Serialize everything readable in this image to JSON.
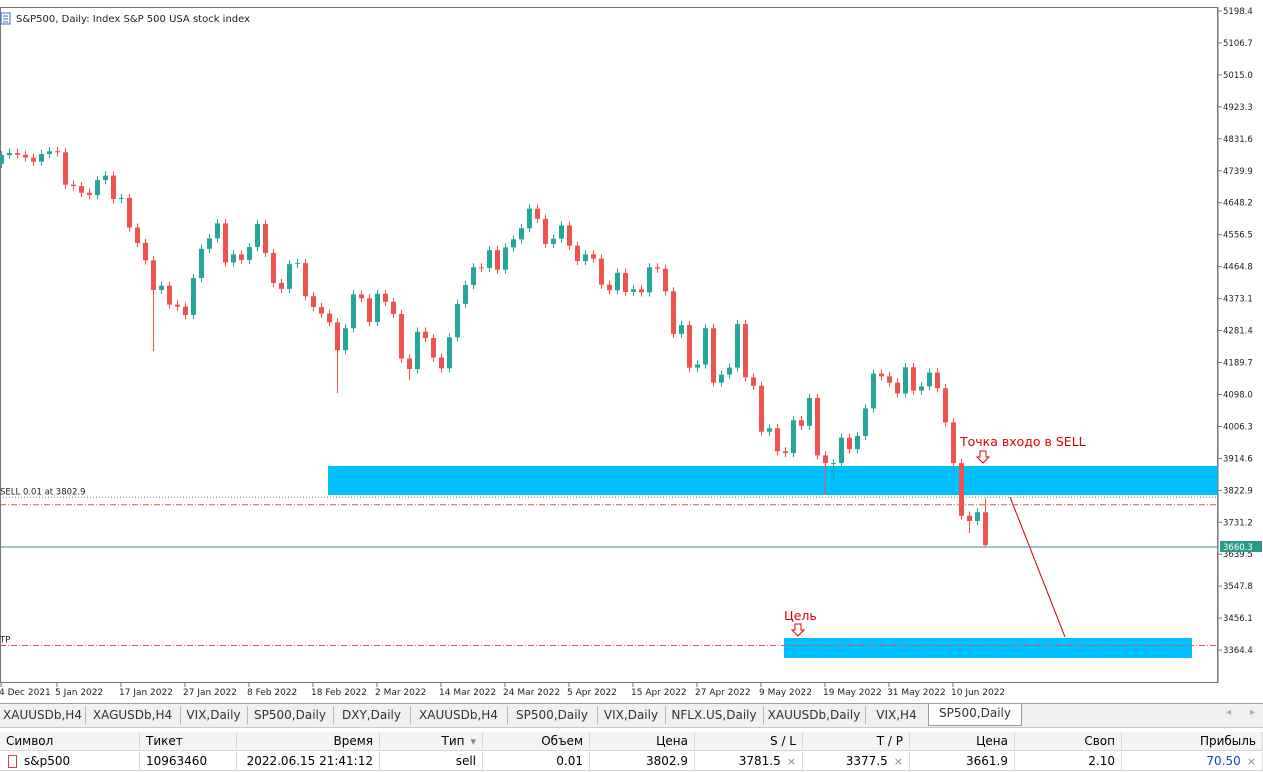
{
  "chart_data": {
    "type": "candlestick",
    "title": "S&P500, Daily:  Index S&P 500 USA stock index",
    "categories": [
      "4 Dec 2021",
      null,
      null,
      null,
      null,
      null,
      null,
      "5 Jan 2022",
      null,
      null,
      null,
      null,
      null,
      null,
      null,
      "17 Jan 2022",
      null,
      null,
      null,
      null,
      null,
      null,
      null,
      "27 Jan 2022",
      null,
      null,
      null,
      null,
      null,
      null,
      null,
      "8 Feb 2022",
      null,
      null,
      null,
      null,
      null,
      null,
      null,
      "18 Feb 2022",
      null,
      null,
      null,
      null,
      null,
      null,
      null,
      "2 Mar 2022",
      null,
      null,
      null,
      null,
      null,
      null,
      null,
      "14 Mar 2022",
      null,
      null,
      null,
      null,
      null,
      null,
      null,
      "24 Mar 2022",
      null,
      null,
      null,
      null,
      null,
      null,
      null,
      "5 Apr 2022",
      null,
      null,
      null,
      null,
      null,
      null,
      null,
      "15 Apr 2022",
      null,
      null,
      null,
      null,
      null,
      null,
      null,
      "27 Apr 2022",
      null,
      null,
      null,
      null,
      null,
      null,
      null,
      "9 May 2022",
      null,
      null,
      null,
      null,
      null,
      null,
      null,
      "19 May 2022",
      null,
      null,
      null,
      null,
      null,
      null,
      null,
      "31 May 2022",
      null,
      null,
      null,
      null,
      null,
      null,
      null,
      "10 Jun 2022",
      null,
      null,
      null,
      null
    ],
    "open": [
      4760,
      4785,
      4791,
      4786,
      4778,
      4766,
      4788,
      4796,
      4793,
      4700,
      4696,
      4677,
      4670,
      4713,
      4726,
      4659,
      4662,
      4577,
      4533,
      4483,
      4398,
      4410,
      4356,
      4350,
      4326,
      4432,
      4516,
      4546,
      4589,
      4477,
      4500,
      4484,
      4521,
      4587,
      4504,
      4418,
      4401,
      4472,
      4475,
      4380,
      4349,
      4330,
      4305,
      4225,
      4288,
      4385,
      4374,
      4306,
      4387,
      4364,
      4329,
      4201,
      4171,
      4278,
      4260,
      4204,
      4173,
      4262,
      4358,
      4412,
      4463,
      4461,
      4512,
      4456,
      4520,
      4543,
      4575,
      4631,
      4602,
      4530,
      4545,
      4583,
      4525,
      4481,
      4500,
      4488,
      4413,
      4397,
      4447,
      4392,
      4400,
      4391,
      4463,
      4459,
      4394,
      4272,
      4297,
      4175,
      4184,
      4288,
      4132,
      4155,
      4175,
      4300,
      4147,
      4123,
      3991,
      4001,
      3935,
      3930,
      4024,
      4008,
      4088,
      3923,
      3901,
      3901,
      3974,
      3941,
      3979,
      4058,
      4158,
      4150,
      4132,
      4101,
      4176,
      4109,
      4121,
      4161,
      4116,
      4018,
      3901,
      3750,
      3735,
      3760
    ],
    "high": [
      4797,
      4803,
      4803,
      4798,
      4790,
      4800,
      4808,
      4808,
      4805,
      4712,
      4708,
      4689,
      4725,
      4738,
      4738,
      4674,
      4674,
      4589,
      4545,
      4495,
      4422,
      4422,
      4368,
      4362,
      4444,
      4528,
      4558,
      4601,
      4601,
      4512,
      4512,
      4533,
      4599,
      4599,
      4516,
      4430,
      4484,
      4487,
      4487,
      4392,
      4361,
      4342,
      4317,
      4300,
      4397,
      4397,
      4386,
      4399,
      4399,
      4376,
      4341,
      4213,
      4290,
      4290,
      4272,
      4216,
      4274,
      4370,
      4424,
      4475,
      4475,
      4524,
      4524,
      4532,
      4555,
      4587,
      4643,
      4643,
      4614,
      4557,
      4595,
      4595,
      4537,
      4512,
      4512,
      4500,
      4425,
      4459,
      4459,
      4412,
      4412,
      4475,
      4475,
      4471,
      4406,
      4309,
      4309,
      4196,
      4300,
      4300,
      4167,
      4187,
      4312,
      4312,
      4159,
      4135,
      4013,
      4013,
      3947,
      4036,
      4036,
      4100,
      4100,
      3935,
      3913,
      3986,
      3986,
      3991,
      4070,
      4170,
      4170,
      4162,
      4144,
      4188,
      4188,
      4133,
      4173,
      4173,
      4128,
      4030,
      3913,
      3762,
      3772,
      3800
    ],
    "low": [
      4748,
      4773,
      4774,
      4766,
      4754,
      4754,
      4776,
      4781,
      4688,
      4684,
      4665,
      4658,
      4658,
      4701,
      4647,
      4647,
      4565,
      4521,
      4471,
      4222,
      4386,
      4344,
      4338,
      4314,
      4314,
      4420,
      4504,
      4534,
      4465,
      4465,
      4472,
      4472,
      4509,
      4492,
      4406,
      4389,
      4389,
      4460,
      4368,
      4337,
      4318,
      4293,
      4102,
      4213,
      4276,
      4362,
      4294,
      4294,
      4352,
      4317,
      4189,
      4140,
      4159,
      4248,
      4192,
      4161,
      4161,
      4250,
      4346,
      4400,
      4449,
      4449,
      4444,
      4444,
      4508,
      4531,
      4563,
      4590,
      4518,
      4518,
      4533,
      4513,
      4469,
      4469,
      4476,
      4401,
      4385,
      4385,
      4380,
      4380,
      4379,
      4379,
      4447,
      4382,
      4260,
      4260,
      4163,
      4163,
      4172,
      4120,
      4120,
      4143,
      4163,
      4135,
      4111,
      3979,
      3979,
      3923,
      3918,
      3918,
      3996,
      3996,
      3911,
      3810,
      3850,
      3889,
      3929,
      3929,
      3967,
      4046,
      4138,
      4120,
      4089,
      4089,
      4097,
      4097,
      4109,
      4104,
      4006,
      3889,
      3738,
      3700,
      3723,
      3660
    ],
    "close": [
      4785,
      4791,
      4786,
      4778,
      4766,
      4788,
      4796,
      4793,
      4700,
      4696,
      4677,
      4670,
      4713,
      4726,
      4659,
      4662,
      4577,
      4533,
      4483,
      4398,
      4410,
      4356,
      4350,
      4326,
      4432,
      4516,
      4546,
      4589,
      4477,
      4500,
      4484,
      4521,
      4587,
      4504,
      4418,
      4401,
      4472,
      4475,
      4380,
      4349,
      4330,
      4305,
      4225,
      4288,
      4385,
      4374,
      4306,
      4387,
      4364,
      4329,
      4201,
      4171,
      4278,
      4260,
      4204,
      4173,
      4262,
      4358,
      4412,
      4463,
      4461,
      4512,
      4456,
      4520,
      4543,
      4575,
      4631,
      4602,
      4530,
      4545,
      4583,
      4525,
      4481,
      4500,
      4488,
      4413,
      4397,
      4447,
      4392,
      4400,
      4391,
      4463,
      4459,
      4394,
      4272,
      4297,
      4175,
      4184,
      4288,
      4132,
      4155,
      4175,
      4300,
      4147,
      4123,
      3991,
      4001,
      3935,
      3930,
      4024,
      4008,
      4088,
      3923,
      3901,
      3901,
      3974,
      3941,
      3979,
      4058,
      4158,
      4150,
      4132,
      4101,
      4176,
      4109,
      4121,
      4161,
      4116,
      4018,
      3901,
      3750,
      3735,
      3760,
      3666
    ],
    "ylim": [
      3270,
      5207
    ],
    "yticks": [
      {
        "value": 5198.4,
        "label": "5198.4"
      },
      {
        "value": 5106.7,
        "label": "5106.7"
      },
      {
        "value": 5015.0,
        "label": "5015.0"
      },
      {
        "value": 4923.3,
        "label": "4923.3"
      },
      {
        "value": 4831.6,
        "label": "4831.6"
      },
      {
        "value": 4739.9,
        "label": "4739.9"
      },
      {
        "value": 4648.2,
        "label": "4648.2"
      },
      {
        "value": 4556.5,
        "label": "4556.5"
      },
      {
        "value": 4464.8,
        "label": "4464.8"
      },
      {
        "value": 4373.1,
        "label": "4373.1"
      },
      {
        "value": 4281.4,
        "label": "4281.4"
      },
      {
        "value": 4189.7,
        "label": "4189.7"
      },
      {
        "value": 4098.0,
        "label": "4098.0"
      },
      {
        "value": 4006.3,
        "label": "4006.3"
      },
      {
        "value": 3914.6,
        "label": "3914.6"
      },
      {
        "value": 3822.9,
        "label": "3822.9"
      },
      {
        "value": 3731.2,
        "label": "3731.2"
      },
      {
        "value": 3639.5,
        "label": "3639.5"
      },
      {
        "value": 3547.8,
        "label": "3547.8"
      },
      {
        "value": 3456.1,
        "label": "3456.1"
      },
      {
        "value": 3364.4,
        "label": "3364.4"
      }
    ],
    "up_color": "#26a69a",
    "down_color": "#ef5350",
    "current_price": 3660.3,
    "sell_price": 3802.9,
    "sl": 3781.5,
    "tp": 3377.5,
    "sell_label": "SELL 0.01 at 3802.9",
    "tp_label": "TP",
    "annotations": [
      "Точка входо в SELL",
      "Цель"
    ]
  },
  "tabs": [
    "XAUUSDb,H4",
    "XAGUSDb,H4",
    "VIX,Daily",
    "SP500,Daily",
    "DXY,Daily",
    "XAUUSDb,H4",
    "SP500,Daily",
    "VIX,Daily",
    "NFLX.US,Daily",
    "XAUUSDb,Daily",
    "VIX,H4",
    "SP500,Daily"
  ],
  "table": {
    "header": [
      "Символ",
      "Тикет",
      "Время",
      "Тип",
      "Объем",
      "Цена",
      "S / L",
      "T / P",
      "Цена",
      "Своп",
      "Прибыль"
    ],
    "rows": [
      [
        "s&p500",
        "10963460",
        "2022.06.15 21:41:12",
        "sell",
        "0.01",
        "3802.9",
        "3781.5",
        "3377.5",
        "3661.9",
        "2.10",
        "70.50"
      ]
    ]
  }
}
